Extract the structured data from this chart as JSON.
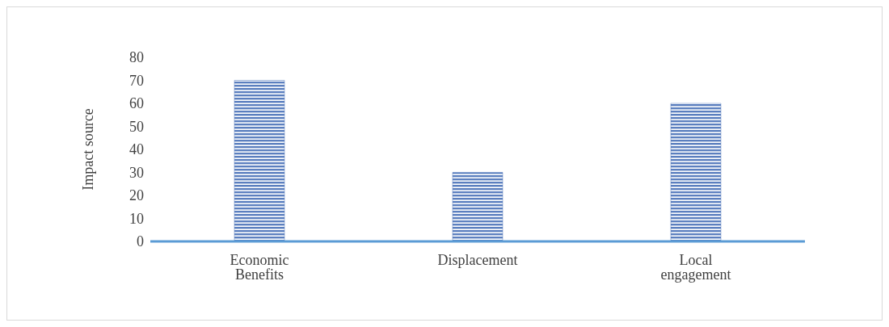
{
  "chart_data": {
    "type": "bar",
    "ylabel": "Impact source",
    "categories": [
      "Economic Benefits",
      "Displacement",
      "Local engagement"
    ],
    "values": [
      70,
      30,
      60
    ],
    "color": "#5b7fbf",
    "ylim": [
      0,
      80
    ],
    "yticks": [
      0,
      10,
      20,
      30,
      40,
      50,
      60,
      70,
      80
    ],
    "grid": false,
    "legend": false
  }
}
